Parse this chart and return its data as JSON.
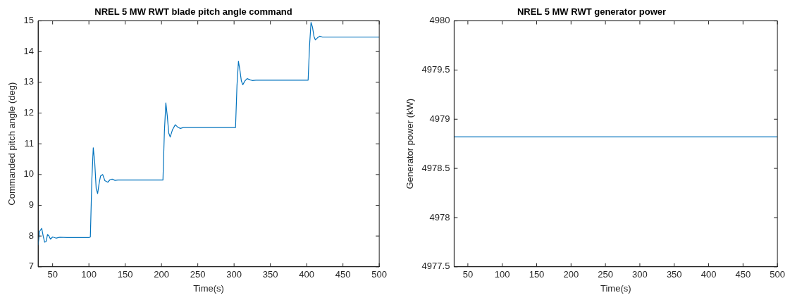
{
  "chart_data": [
    {
      "type": "line",
      "title": "NREL 5 MW RWT blade pitch angle command",
      "xlabel": "Time(s)",
      "ylabel": "Commanded pitch angle (deg)",
      "xlim": [
        30,
        500
      ],
      "xticks": [
        50,
        100,
        150,
        200,
        250,
        300,
        350,
        400,
        450,
        500
      ],
      "ylim": [
        7,
        15
      ],
      "yticks": [
        7,
        8,
        9,
        10,
        11,
        12,
        13,
        14,
        15
      ],
      "grid": false,
      "legend": false,
      "series": [
        {
          "color": "#0072bd",
          "x": [
            30,
            32,
            35,
            37,
            39,
            41,
            43,
            45,
            47,
            50,
            55,
            60,
            70,
            80,
            90,
            100,
            102,
            104,
            106,
            108,
            110,
            112,
            114,
            116,
            119,
            122,
            126,
            129,
            132,
            136,
            140,
            150,
            170,
            190,
            202,
            204,
            206,
            208,
            210,
            212,
            215,
            219,
            222,
            226,
            230,
            235,
            250,
            280,
            302,
            304,
            306,
            308,
            310,
            312,
            315,
            318,
            322,
            325,
            330,
            350,
            380,
            402,
            404,
            406,
            408,
            410,
            412,
            415,
            418,
            422,
            430,
            460,
            500
          ],
          "values": [
            7.7,
            8.15,
            8.25,
            8.0,
            7.8,
            7.82,
            8.05,
            8.0,
            7.9,
            7.97,
            7.93,
            7.96,
            7.95,
            7.95,
            7.95,
            7.95,
            7.97,
            9.8,
            10.87,
            10.4,
            9.55,
            9.38,
            9.7,
            9.95,
            10.0,
            9.8,
            9.75,
            9.83,
            9.85,
            9.81,
            9.82,
            9.82,
            9.82,
            9.82,
            9.82,
            11.4,
            12.33,
            11.9,
            11.35,
            11.22,
            11.45,
            11.62,
            11.55,
            11.5,
            11.53,
            11.53,
            11.53,
            11.53,
            11.53,
            12.9,
            13.68,
            13.4,
            13.05,
            12.92,
            13.05,
            13.12,
            13.08,
            13.06,
            13.07,
            13.07,
            13.07,
            13.07,
            14.2,
            14.95,
            14.8,
            14.5,
            14.38,
            14.45,
            14.5,
            14.47,
            14.47,
            14.47,
            14.47
          ]
        }
      ]
    },
    {
      "type": "line",
      "title": "NREL 5 MW RWT generator power",
      "xlabel": "Time(s)",
      "ylabel": "Generator power (kW)",
      "xlim": [
        30,
        500
      ],
      "xticks": [
        50,
        100,
        150,
        200,
        250,
        300,
        350,
        400,
        450,
        500
      ],
      "ylim": [
        4977.5,
        4980
      ],
      "yticks": [
        4977.5,
        4978,
        4978.5,
        4979,
        4979.5,
        4980
      ],
      "grid": false,
      "legend": false,
      "series": [
        {
          "color": "#0072bd",
          "x": [
            30,
            500
          ],
          "values": [
            4978.82,
            4978.82
          ]
        }
      ]
    }
  ]
}
